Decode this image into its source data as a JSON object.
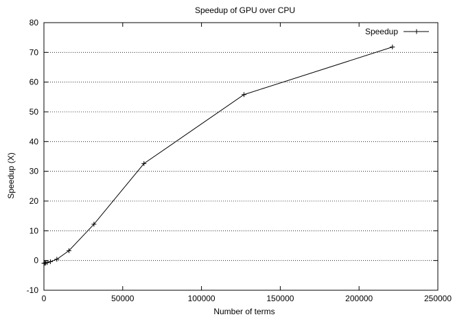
{
  "chart_data": {
    "type": "line",
    "title": "Speedup of GPU over CPU",
    "xlabel": "Number of terms",
    "ylabel": "Speedup (X)",
    "xlim": [
      0,
      250000
    ],
    "ylim": [
      -10,
      80
    ],
    "x_ticks": [
      0,
      50000,
      100000,
      150000,
      200000,
      250000
    ],
    "y_ticks": [
      -10,
      0,
      10,
      20,
      30,
      40,
      50,
      60,
      70,
      80
    ],
    "grid": {
      "horizontal": true,
      "vertical": false,
      "style": "dotted"
    },
    "legend": {
      "position": "top-right"
    },
    "series": [
      {
        "name": "Speedup",
        "color": "#000000",
        "marker": "plus",
        "x": [
          0,
          512,
          1024,
          2048,
          4096,
          8192,
          15872,
          31744,
          63488,
          126976,
          221184
        ],
        "y": [
          -0.9,
          -0.9,
          -0.8,
          -0.7,
          -0.4,
          0.4,
          3.3,
          12.2,
          32.6,
          55.8,
          71.8
        ]
      }
    ]
  }
}
